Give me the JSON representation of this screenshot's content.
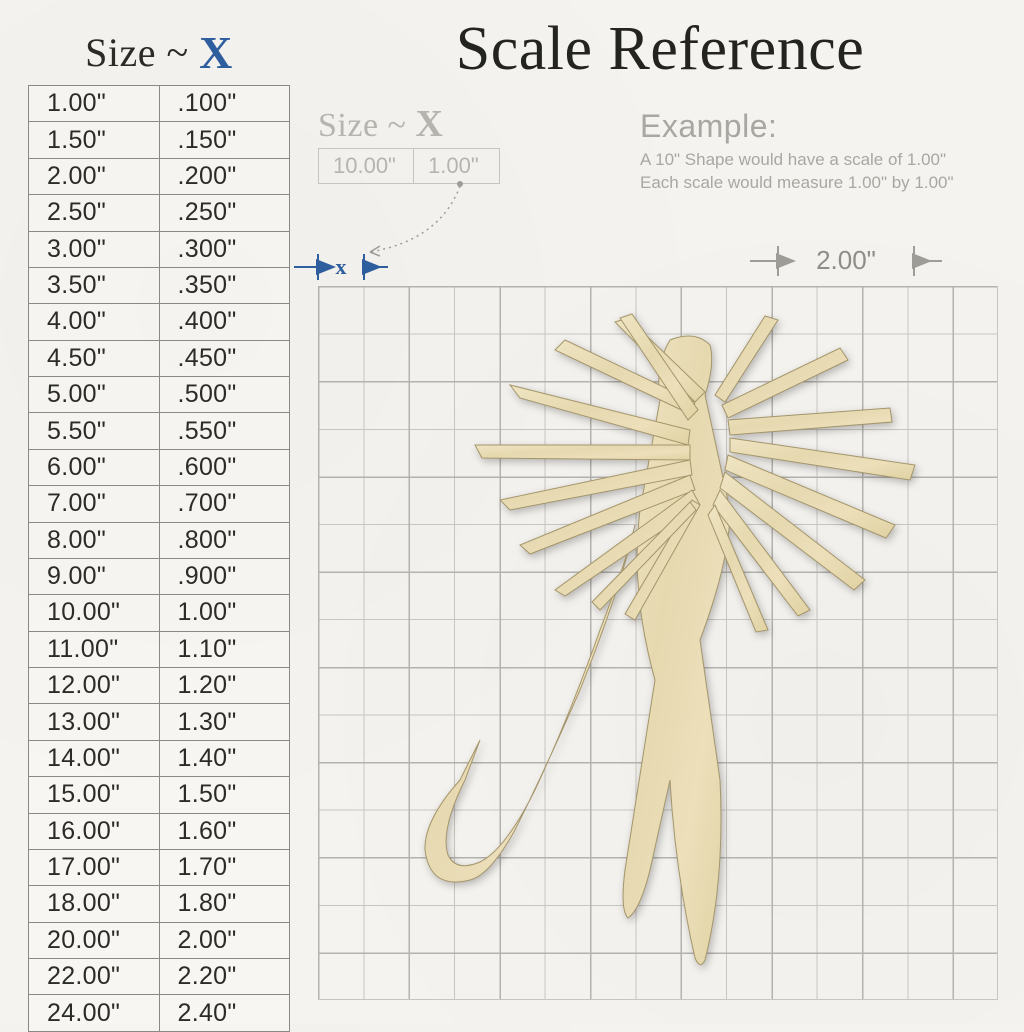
{
  "title": "Scale Reference",
  "table": {
    "header_prefix": "Size ~ ",
    "header_x": "X",
    "header_color": "#2a2a28",
    "header_x_color": "#2f5e9e",
    "rows": [
      [
        "1.00\"",
        ".100\""
      ],
      [
        "1.50\"",
        ".150\""
      ],
      [
        "2.00\"",
        ".200\""
      ],
      [
        "2.50\"",
        ".250\""
      ],
      [
        "3.00\"",
        ".300\""
      ],
      [
        "3.50\"",
        ".350\""
      ],
      [
        "4.00\"",
        ".400\""
      ],
      [
        "4.50\"",
        ".450\""
      ],
      [
        "5.00\"",
        ".500\""
      ],
      [
        "5.50\"",
        ".550\""
      ],
      [
        "6.00\"",
        ".600\""
      ],
      [
        "7.00\"",
        ".700\""
      ],
      [
        "8.00\"",
        ".800\""
      ],
      [
        "9.00\"",
        ".900\""
      ],
      [
        "10.00\"",
        "1.00\""
      ],
      [
        "11.00\"",
        "1.10\""
      ],
      [
        "12.00\"",
        "1.20\""
      ],
      [
        "13.00\"",
        "1.30\""
      ],
      [
        "14.00\"",
        "1.40\""
      ],
      [
        "15.00\"",
        "1.50\""
      ],
      [
        "16.00\"",
        "1.60\""
      ],
      [
        "17.00\"",
        "1.70\""
      ],
      [
        "18.00\"",
        "1.80\""
      ],
      [
        "20.00\"",
        "2.00\""
      ],
      [
        "22.00\"",
        "2.20\""
      ],
      [
        "24.00\"",
        "2.40\""
      ]
    ]
  },
  "subsize": {
    "prefix": "Size ~ ",
    "x": "X",
    "left": "10.00\"",
    "right": "1.00\"",
    "text_color": "#b5b4af"
  },
  "example": {
    "heading": "Example:",
    "line1": "A 10\" Shape would have a scale of 1.00\"",
    "line2": "Each scale would measure 1.00\" by 1.00\""
  },
  "dim": {
    "x_label": "x",
    "two_label": "2.00\"",
    "arrow_color": "#2f5e9e",
    "arrow_color_gray": "#9d9c96"
  },
  "grid": {
    "cols": 15,
    "rows": 15,
    "minor_color": "#c6c5c0",
    "major_color": "#b3b2ad"
  },
  "shape": {
    "fill": "#e8dcb8",
    "stroke": "#9b8c60"
  },
  "colors": {
    "background": "#f5f3ef",
    "text": "#2a2a28",
    "muted": "#a8a7a1"
  }
}
